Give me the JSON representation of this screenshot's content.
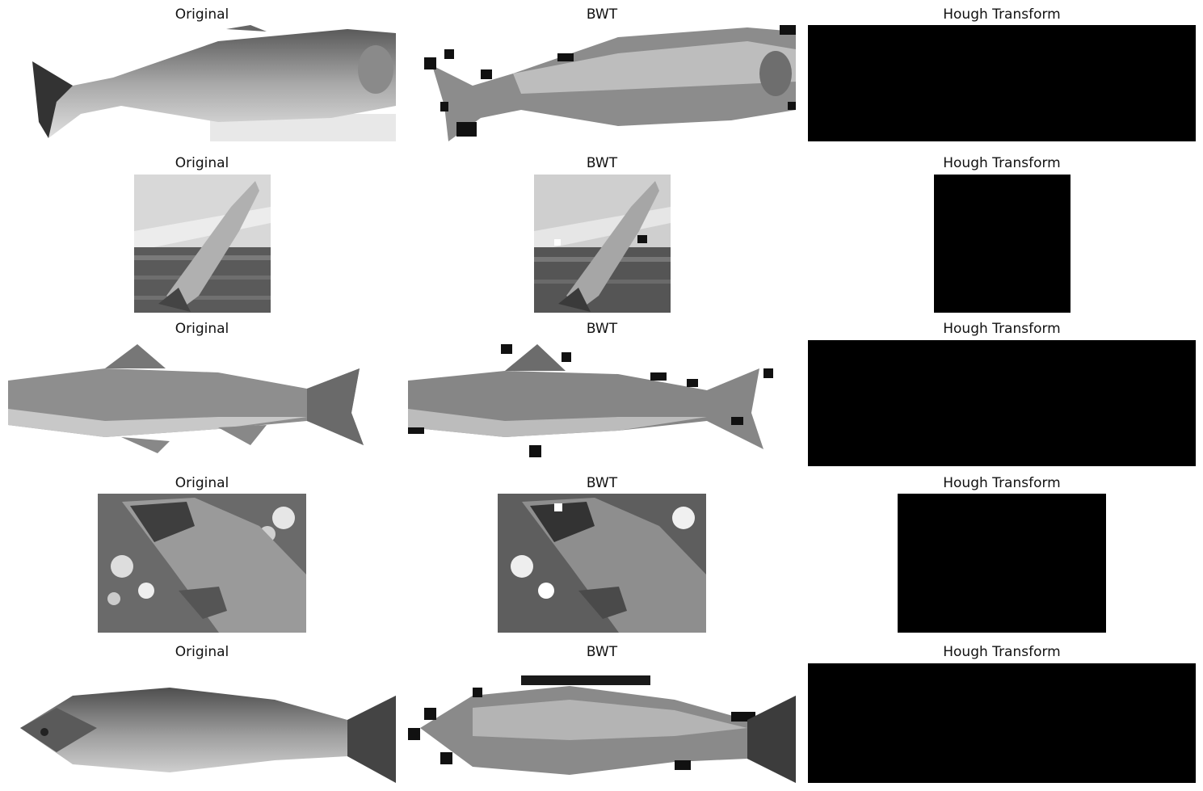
{
  "grid": {
    "column_titles": [
      "Original",
      "BWT",
      "Hough Transform"
    ],
    "rows": [
      {
        "subject": "salmon side view",
        "titles": [
          "Original",
          "BWT",
          "Hough Transform"
        ]
      },
      {
        "subject": "jumping salmon",
        "titles": [
          "Original",
          "BWT",
          "Hough Transform"
        ]
      },
      {
        "subject": "spotted trout side view",
        "titles": [
          "Original",
          "BWT",
          "Hough Transform"
        ]
      },
      {
        "subject": "hand holding salmon",
        "titles": [
          "Original",
          "BWT",
          "Hough Transform"
        ]
      },
      {
        "subject": "salmon side view blurred",
        "titles": [
          "Original",
          "BWT",
          "Hough Transform"
        ]
      }
    ]
  },
  "colors": {
    "background": "#ffffff",
    "hough_fill": "#000000",
    "gray_dark": "#3a3a3a",
    "gray_light": "#c8c8c8"
  }
}
